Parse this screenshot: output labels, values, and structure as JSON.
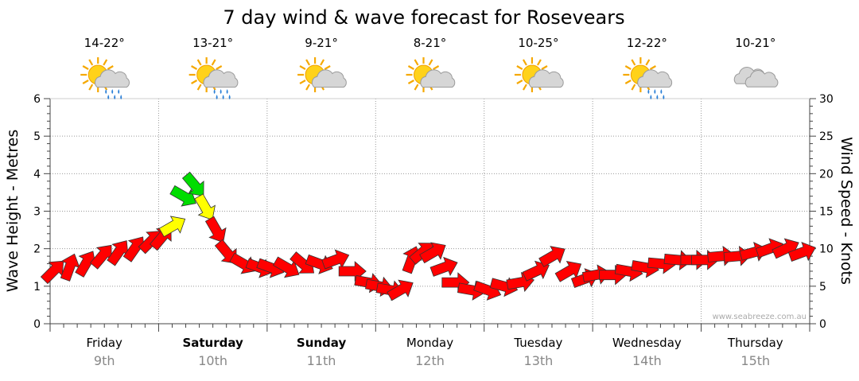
{
  "chart_data": {
    "type": "line",
    "title": "7 day wind & wave forecast for Rosevears",
    "ylabel_left": "Wave Height - Metres",
    "ylabel_right": "Wind Speed - Knots",
    "ylim_left": [
      0,
      6
    ],
    "ylim_right": [
      0,
      30
    ],
    "yticks_left": [
      "0",
      "1",
      "2",
      "3",
      "4",
      "5",
      "6"
    ],
    "yticks_right": [
      "0",
      "5",
      "10",
      "15",
      "20",
      "25",
      "30"
    ],
    "grid": true,
    "watermark": "www.seabreeze.com.au",
    "wind_color_scale": {
      "low": "#ff0000",
      "medium": "#ffff00",
      "high": "#00dd00"
    },
    "days": [
      {
        "name": "Friday",
        "date": "9th",
        "temp": "14-22°",
        "weather_icon": "sun-cloud-rain-icon",
        "bold": false
      },
      {
        "name": "Saturday",
        "date": "10th",
        "temp": "13-21°",
        "weather_icon": "sun-cloud-rain-icon",
        "bold": true
      },
      {
        "name": "Sunday",
        "date": "11th",
        "temp": "9-21°",
        "weather_icon": "sun-cloud-icon",
        "bold": true
      },
      {
        "name": "Monday",
        "date": "12th",
        "temp": "8-21°",
        "weather_icon": "sun-cloud-icon",
        "bold": false
      },
      {
        "name": "Tuesday",
        "date": "13th",
        "temp": "10-25°",
        "weather_icon": "sun-cloud-icon",
        "bold": false
      },
      {
        "name": "Wednesday",
        "date": "14th",
        "temp": "12-22°",
        "weather_icon": "sun-cloud-rain-icon",
        "bold": false
      },
      {
        "name": "Thursday",
        "date": "15th",
        "temp": "10-21°",
        "weather_icon": "cloud-icon",
        "bold": false
      }
    ],
    "series": [
      {
        "name": "Wind Speed",
        "unit": "knots",
        "x_day": [
          0.0,
          0.15,
          0.3,
          0.45,
          0.6,
          0.75,
          0.9,
          1.0,
          1.1,
          1.2,
          1.3,
          1.4,
          1.5,
          1.6,
          1.75,
          1.9,
          2.0,
          2.15,
          2.3,
          2.45,
          2.6,
          2.75,
          2.9,
          3.0,
          3.1,
          3.2,
          3.3,
          3.4,
          3.5,
          3.6,
          3.7,
          3.85,
          4.0,
          4.15,
          4.3,
          4.45,
          4.6,
          4.75,
          4.9,
          5.0,
          5.15,
          5.3,
          5.45,
          5.6,
          5.75,
          5.9,
          6.0,
          6.15,
          6.3,
          6.45,
          6.6,
          6.75,
          6.9
        ],
        "values": [
          7,
          7.5,
          8,
          9,
          9.5,
          10,
          11,
          11.5,
          13,
          17,
          18.5,
          15.5,
          12.5,
          9.5,
          8,
          7.5,
          7.5,
          7.5,
          8,
          8,
          8.5,
          7,
          5.5,
          5,
          4.5,
          4.5,
          8.5,
          9.5,
          9.5,
          7.5,
          5.5,
          4.5,
          4.5,
          5,
          5.5,
          7,
          9,
          7,
          6,
          6.5,
          6.5,
          7,
          7.5,
          8,
          8.5,
          8.5,
          8.5,
          9,
          9,
          9.5,
          10,
          10,
          9.5
        ],
        "direction_deg": [
          225,
          200,
          210,
          220,
          215,
          215,
          225,
          220,
          240,
          300,
          320,
          330,
          330,
          320,
          300,
          290,
          290,
          300,
          310,
          290,
          250,
          270,
          280,
          280,
          280,
          240,
          200,
          230,
          240,
          250,
          270,
          280,
          290,
          285,
          260,
          245,
          240,
          240,
          250,
          260,
          270,
          280,
          280,
          275,
          275,
          270,
          270,
          265,
          265,
          255,
          250,
          245,
          250
        ]
      }
    ]
  }
}
